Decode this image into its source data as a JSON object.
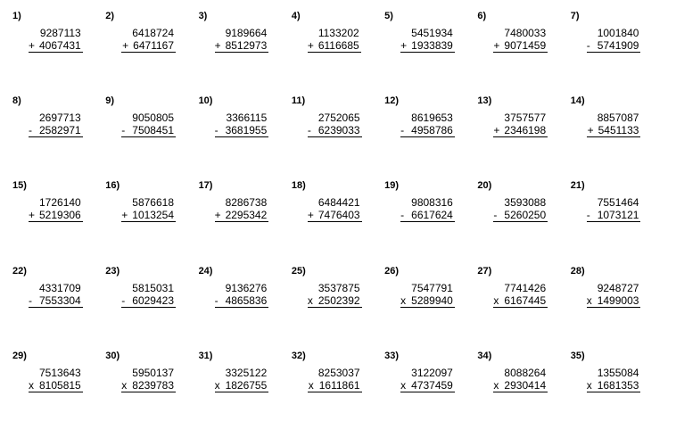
{
  "worksheet": {
    "background_color": "#ffffff",
    "text_color": "#000000",
    "font_family": "Arial, sans-serif",
    "number_fontsize": 11,
    "operand_fontsize": 12,
    "columns": 7,
    "rows": 5,
    "problems": [
      {
        "n": "1)",
        "a": "9287113",
        "b": "4067431",
        "op": "+"
      },
      {
        "n": "2)",
        "a": "6418724",
        "b": "6471167",
        "op": "+"
      },
      {
        "n": "3)",
        "a": "9189664",
        "b": "8512973",
        "op": "+"
      },
      {
        "n": "4)",
        "a": "1133202",
        "b": "6116685",
        "op": "+"
      },
      {
        "n": "5)",
        "a": "5451934",
        "b": "1933839",
        "op": "+"
      },
      {
        "n": "6)",
        "a": "7480033",
        "b": "9071459",
        "op": "+"
      },
      {
        "n": "7)",
        "a": "1001840",
        "b": "5741909",
        "op": "-"
      },
      {
        "n": "8)",
        "a": "2697713",
        "b": "2582971",
        "op": "-"
      },
      {
        "n": "9)",
        "a": "9050805",
        "b": "7508451",
        "op": "-"
      },
      {
        "n": "10)",
        "a": "3366115",
        "b": "3681955",
        "op": "-"
      },
      {
        "n": "11)",
        "a": "2752065",
        "b": "6239033",
        "op": "-"
      },
      {
        "n": "12)",
        "a": "8619653",
        "b": "4958786",
        "op": "-"
      },
      {
        "n": "13)",
        "a": "3757577",
        "b": "2346198",
        "op": "+"
      },
      {
        "n": "14)",
        "a": "8857087",
        "b": "5451133",
        "op": "+"
      },
      {
        "n": "15)",
        "a": "1726140",
        "b": "5219306",
        "op": "+"
      },
      {
        "n": "16)",
        "a": "5876618",
        "b": "1013254",
        "op": "+"
      },
      {
        "n": "17)",
        "a": "8286738",
        "b": "2295342",
        "op": "+"
      },
      {
        "n": "18)",
        "a": "6484421",
        "b": "7476403",
        "op": "+"
      },
      {
        "n": "19)",
        "a": "9808316",
        "b": "6617624",
        "op": "-"
      },
      {
        "n": "20)",
        "a": "3593088",
        "b": "5260250",
        "op": "-"
      },
      {
        "n": "21)",
        "a": "7551464",
        "b": "1073121",
        "op": "-"
      },
      {
        "n": "22)",
        "a": "4331709",
        "b": "7553304",
        "op": "-"
      },
      {
        "n": "23)",
        "a": "5815031",
        "b": "6029423",
        "op": "-"
      },
      {
        "n": "24)",
        "a": "9136276",
        "b": "4865836",
        "op": "-"
      },
      {
        "n": "25)",
        "a": "3537875",
        "b": "2502392",
        "op": "x"
      },
      {
        "n": "26)",
        "a": "7547791",
        "b": "5289940",
        "op": "x"
      },
      {
        "n": "27)",
        "a": "7741426",
        "b": "6167445",
        "op": "x"
      },
      {
        "n": "28)",
        "a": "9248727",
        "b": "1499003",
        "op": "x"
      },
      {
        "n": "29)",
        "a": "7513643",
        "b": "8105815",
        "op": "x"
      },
      {
        "n": "30)",
        "a": "5950137",
        "b": "8239783",
        "op": "x"
      },
      {
        "n": "31)",
        "a": "3325122",
        "b": "1826755",
        "op": "x"
      },
      {
        "n": "32)",
        "a": "8253037",
        "b": "1611861",
        "op": "x"
      },
      {
        "n": "33)",
        "a": "3122097",
        "b": "4737459",
        "op": "x"
      },
      {
        "n": "34)",
        "a": "8088264",
        "b": "2930414",
        "op": "x"
      },
      {
        "n": "35)",
        "a": "1355084",
        "b": "1681353",
        "op": "x"
      }
    ]
  }
}
